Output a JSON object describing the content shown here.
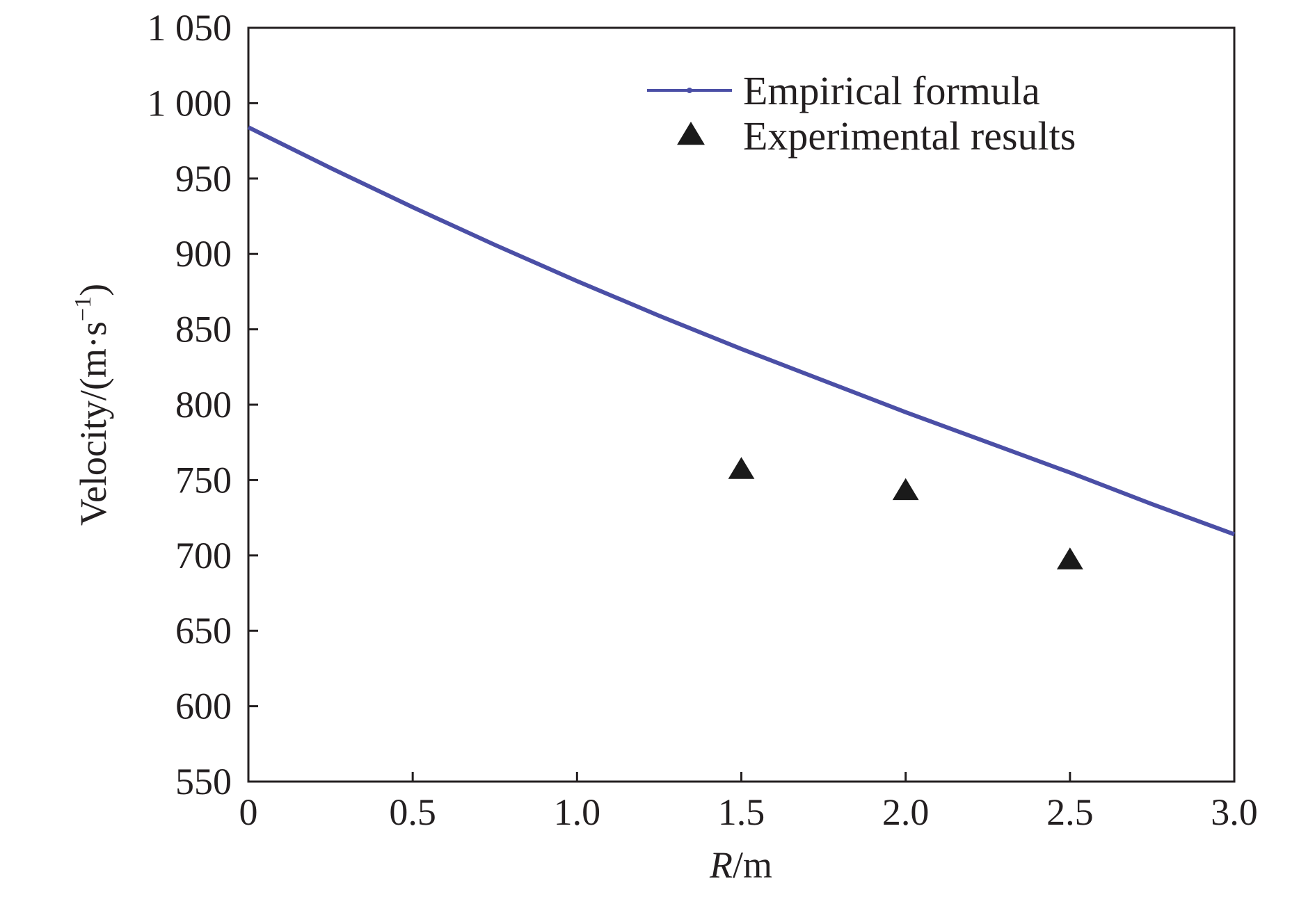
{
  "chart_data": {
    "type": "line",
    "title": "",
    "xlabel": {
      "italic": "R",
      "rest": "/m"
    },
    "ylabel": {
      "text": "Velocity/(m·s",
      "sup": "−1",
      "close": ")"
    },
    "xlim": [
      0,
      3.0
    ],
    "ylim": [
      550,
      1050
    ],
    "x_ticks": [
      0,
      0.5,
      1.0,
      1.5,
      2.0,
      2.5,
      3.0
    ],
    "x_tick_labels": [
      "0",
      "0.5",
      "1.0",
      "1.5",
      "2.0",
      "2.5",
      "3.0"
    ],
    "y_ticks": [
      550,
      600,
      650,
      700,
      750,
      800,
      850,
      900,
      950,
      1000,
      1050
    ],
    "y_tick_labels": [
      "550",
      "600",
      "650",
      "700",
      "750",
      "800",
      "850",
      "900",
      "950",
      "1 000",
      "1 050"
    ],
    "grid": false,
    "legend_position": "top-right",
    "series": [
      {
        "name": "Empirical formula",
        "kind": "line",
        "color": "#4b4fa6",
        "x": [
          0,
          0.25,
          0.5,
          0.75,
          1.0,
          1.25,
          1.5,
          1.75,
          2.0,
          2.25,
          2.5,
          2.75,
          3.0
        ],
        "y": [
          984,
          957,
          931,
          906,
          882,
          859,
          837,
          816,
          795,
          775,
          755,
          734,
          714
        ]
      },
      {
        "name": "Experimental results",
        "kind": "scatter",
        "marker": "triangle",
        "color": "#1a1a1a",
        "x": [
          1.5,
          2.0,
          2.5
        ],
        "y": [
          757,
          743,
          697
        ]
      }
    ]
  }
}
